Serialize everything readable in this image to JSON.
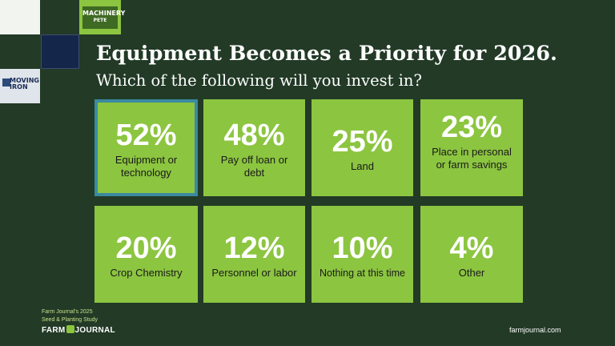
{
  "logos": {
    "machinery_pete_line1": "MACHINERY",
    "machinery_pete_line2": "PETE",
    "moving_iron_line1": "MOVING",
    "moving_iron_line2": "IRON"
  },
  "title": "Equipment Becomes a Priority for 2026.",
  "subtitle": "Which of the following will you invest in?",
  "tiles": [
    {
      "pct": "52%",
      "label": "Equipment or technology",
      "value": 52
    },
    {
      "pct": "48%",
      "label": "Pay off loan or debt",
      "value": 48
    },
    {
      "pct": "25%",
      "label": "Land",
      "value": 25
    },
    {
      "pct": "23%",
      "label": "Place in personal or farm savings",
      "value": 23
    },
    {
      "pct": "20%",
      "label": "Crop Chemistry",
      "value": 20
    },
    {
      "pct": "12%",
      "label": "Personnel or labor",
      "value": 12
    },
    {
      "pct": "10%",
      "label": "Nothing at this time",
      "value": 10
    },
    {
      "pct": "4%",
      "label": "Other",
      "value": 4
    }
  ],
  "footer": {
    "study_line1": "Farm Journal's 2025",
    "study_line2": "Seed & Planting Study",
    "brand_left": "FARM",
    "brand_right": "JOURNAL",
    "url": "farmjournal.com"
  },
  "colors": {
    "background": "#223a26",
    "tile": "#8cc540",
    "highlight_border": "#3a8aa0"
  }
}
